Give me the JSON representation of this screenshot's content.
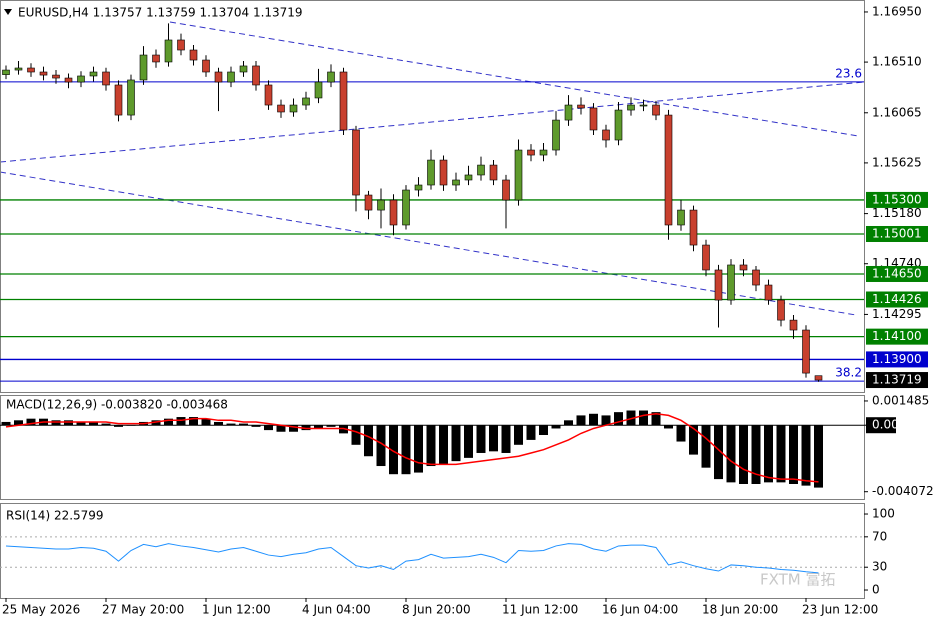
{
  "chart_data": [
    {
      "type": "candlestick",
      "title": "EURUSD,H4 1.13757 1.13759 1.13704 1.13719",
      "categories": [
        "25 May 2026",
        null,
        null,
        null,
        null,
        null,
        null,
        null,
        "27 May 20:00",
        null,
        null,
        null,
        null,
        null,
        null,
        null,
        "1 Jun 12:00",
        null,
        null,
        null,
        null,
        null,
        null,
        null,
        "4 Jun 04:00",
        null,
        null,
        null,
        null,
        null,
        null,
        null,
        "8 Jun 20:00",
        null,
        null,
        null,
        null,
        null,
        null,
        null,
        "11 Jun 12:00",
        null,
        null,
        null,
        null,
        null,
        null,
        null,
        "16 Jun 04:00",
        null,
        null,
        null,
        null,
        null,
        null,
        null,
        "18 Jun 20:00",
        null,
        null,
        null,
        null,
        null,
        null,
        null,
        "23 Jun 12:00",
        null
      ],
      "open": [
        1.164,
        1.1644,
        1.16458,
        1.16423,
        1.16396,
        1.1637,
        1.16335,
        1.16388,
        1.16423,
        1.16309,
        1.16045,
        1.16353,
        1.16572,
        1.16511,
        1.16704,
        1.16616,
        1.16528,
        1.16423,
        1.16335,
        1.16423,
        1.16476,
        1.16309,
        1.16133,
        1.16072,
        1.16133,
        1.16195,
        1.16335,
        1.16423,
        1.15914,
        1.15343,
        1.15211,
        1.15299,
        1.1508,
        1.15387,
        1.15431,
        1.1565,
        1.15431,
        1.15475,
        1.15519,
        1.15606,
        1.15475,
        1.15299,
        1.15738,
        1.15694,
        1.15738,
        1.16001,
        1.16133,
        1.16107,
        1.15914,
        1.15826,
        1.16089,
        1.16133,
        1.16133,
        1.16045,
        1.1508,
        1.15211,
        1.14904,
        1.14685,
        1.14421,
        1.14729,
        1.14685,
        1.14553,
        1.14421,
        1.14245,
        1.14158,
        1.13757
      ],
      "high": [
        1.1648,
        1.1652,
        1.165,
        1.1647,
        1.1644,
        1.1641,
        1.1643,
        1.1647,
        1.1646,
        1.1635,
        1.164,
        1.1665,
        1.1662,
        1.1685,
        1.1676,
        1.1666,
        1.1657,
        1.1646,
        1.1647,
        1.1652,
        1.1652,
        1.1635,
        1.1618,
        1.1619,
        1.1625,
        1.1645,
        1.1649,
        1.1646,
        1.1595,
        1.1538,
        1.154,
        1.1535,
        1.1543,
        1.155,
        1.1574,
        1.1569,
        1.1554,
        1.156,
        1.1568,
        1.1565,
        1.1552,
        1.1583,
        1.1579,
        1.158,
        1.1608,
        1.1622,
        1.162,
        1.1615,
        1.1596,
        1.1616,
        1.162,
        1.1618,
        1.1617,
        1.1609,
        1.153,
        1.1525,
        1.1495,
        1.1473,
        1.1478,
        1.1478,
        1.1472,
        1.146,
        1.1446,
        1.1429,
        1.142,
        1.13759
      ],
      "low": [
        1.1636,
        1.164,
        1.1638,
        1.1635,
        1.1632,
        1.1628,
        1.1629,
        1.1634,
        1.1626,
        1.1599,
        1.16,
        1.1631,
        1.1646,
        1.1647,
        1.1657,
        1.1648,
        1.1638,
        1.1608,
        1.1629,
        1.1638,
        1.1626,
        1.1609,
        1.1602,
        1.1603,
        1.1609,
        1.1615,
        1.1629,
        1.1587,
        1.152,
        1.1513,
        1.1505,
        1.1499,
        1.1504,
        1.1533,
        1.1539,
        1.1538,
        1.1538,
        1.1543,
        1.1547,
        1.1543,
        1.1505,
        1.1525,
        1.1564,
        1.1564,
        1.1569,
        1.1595,
        1.1605,
        1.1587,
        1.1576,
        1.1578,
        1.1604,
        1.1608,
        1.16,
        1.1495,
        1.1503,
        1.1485,
        1.1463,
        1.1418,
        1.1438,
        1.1463,
        1.145,
        1.1438,
        1.1419,
        1.1408,
        1.1374,
        1.13704
      ],
      "close": [
        1.1644,
        1.16458,
        1.16423,
        1.16396,
        1.1637,
        1.16335,
        1.16388,
        1.16423,
        1.16309,
        1.16045,
        1.16353,
        1.16572,
        1.16511,
        1.16704,
        1.16616,
        1.16528,
        1.16423,
        1.16335,
        1.16423,
        1.16476,
        1.16309,
        1.16133,
        1.16072,
        1.16133,
        1.16195,
        1.16335,
        1.16423,
        1.15914,
        1.15343,
        1.15211,
        1.15299,
        1.1508,
        1.15387,
        1.15431,
        1.1565,
        1.15431,
        1.15475,
        1.15519,
        1.15606,
        1.15475,
        1.15299,
        1.15738,
        1.15694,
        1.15738,
        1.16001,
        1.16133,
        1.16107,
        1.15914,
        1.15826,
        1.16089,
        1.16133,
        1.16133,
        1.16045,
        1.1508,
        1.15211,
        1.14904,
        1.14685,
        1.14421,
        1.14729,
        1.14685,
        1.14553,
        1.14421,
        1.14245,
        1.14158,
        1.1378,
        1.13719
      ],
      "up_color": "#5e9a2c",
      "down_color": "#c8402e",
      "ylim": [
        1.13614,
        1.17055
      ],
      "yticks": [
        {
          "value": 1.1695,
          "label": "1.16950"
        },
        {
          "value": 1.1651,
          "label": "1.16510"
        },
        1.16065,
        1.15625,
        {
          "value": 1.1518,
          "label": "1.15180"
        },
        {
          "value": 1.1474,
          "label": "1.14740"
        },
        1.14295
      ],
      "levels": [
        {
          "value": 1.153,
          "label": "1.15300",
          "color": "#008000"
        },
        {
          "value": 1.15001,
          "label": "1.15001",
          "color": "#008000"
        },
        {
          "value": 1.1465,
          "label": "1.14650",
          "color": "#008000"
        },
        {
          "value": 1.14426,
          "label": "1.14426",
          "color": "#008000"
        },
        {
          "value": 1.141,
          "label": "1.14100",
          "color": "#008000"
        },
        {
          "value": 1.139,
          "label": "1.13900",
          "color": "#0000cd"
        }
      ],
      "fib_levels": [
        {
          "value": 1.16336,
          "label": "23.6"
        },
        {
          "value": 1.1371,
          "label": "38.2"
        }
      ],
      "fib_color": "#0000cd",
      "last_price": {
        "value": 1.13719,
        "label": "1.13719"
      }
    },
    {
      "type": "macd",
      "title": "MACD(12,26,9) -0.003820 -0.003468",
      "ylim": [
        -0.00458,
        0.00185
      ],
      "yticks": [
        0.001485,
        {
          "value": 0,
          "label": "0.00"
        },
        -0.004072
      ],
      "series": [
        {
          "type": "bar",
          "color": "#000000",
          "values": [
            0.0002,
            0.0003,
            0.0004,
            0.0004,
            0.0003,
            0.0003,
            0.0002,
            0.0002,
            0.0001,
            -0.0001,
            0,
            0.0002,
            0.0003,
            0.0004,
            0.0005,
            0.0005,
            0.0004,
            0.0002,
            0.0001,
            0.0001,
            -0.0001,
            -0.0003,
            -0.0004,
            -0.0004,
            -0.0003,
            -0.0002,
            -0.0001,
            -0.0005,
            -0.0012,
            -0.0019,
            -0.0025,
            -0.003,
            -0.003,
            -0.0029,
            -0.0025,
            -0.0024,
            -0.0022,
            -0.002,
            -0.0017,
            -0.0016,
            -0.0017,
            -0.0012,
            -0.0009,
            -0.0006,
            -0.0002,
            0.0003,
            0.0006,
            0.0007,
            0.0006,
            0.0008,
            0.0009,
            0.0009,
            0.0008,
            -0.0002,
            -0.001,
            -0.0018,
            -0.0026,
            -0.0033,
            -0.0035,
            -0.0036,
            -0.0036,
            -0.0035,
            -0.0035,
            -0.0036,
            -0.0037,
            -0.00382
          ]
        },
        {
          "type": "line",
          "color": "#ff0000",
          "values": [
            -0.0001,
            0,
            0.0001,
            0.0002,
            0.0002,
            0.0002,
            0.0002,
            0.0002,
            0.0002,
            0.0001,
            0.0001,
            0.0001,
            0.0002,
            0.0003,
            0.0003,
            0.0004,
            0.0004,
            0.0003,
            0.0003,
            0.0002,
            0.0002,
            0.0001,
            0,
            -0.0001,
            -0.0002,
            -0.0002,
            -0.0002,
            -0.0002,
            -0.0004,
            -0.0007,
            -0.0011,
            -0.0016,
            -0.002,
            -0.0023,
            -0.0024,
            -0.0024,
            -0.0024,
            -0.0023,
            -0.0022,
            -0.0021,
            -0.002,
            -0.0019,
            -0.0017,
            -0.0015,
            -0.0012,
            -0.0009,
            -0.0005,
            -0.0002,
            0,
            0.0002,
            0.0004,
            0.0006,
            0.0007,
            0.0006,
            0.0003,
            -0.0002,
            -0.0008,
            -0.0015,
            -0.0022,
            -0.0027,
            -0.003,
            -0.0032,
            -0.0033,
            -0.0033,
            -0.0034,
            -0.003468
          ]
        }
      ]
    },
    {
      "type": "rsi",
      "title": "RSI(14) 22.5799",
      "ylim": [
        -10.5,
        114.5
      ],
      "yticks": [
        100,
        70,
        30,
        0
      ],
      "levels": [
        70,
        30
      ],
      "color": "#1e90ff",
      "values": [
        58,
        57,
        56,
        55,
        54,
        54,
        56,
        55,
        51,
        38,
        52,
        60,
        57,
        61,
        58,
        56,
        53,
        50,
        54,
        56,
        51,
        46,
        44,
        47,
        49,
        54,
        56,
        44,
        32,
        29,
        32,
        27,
        38,
        40,
        47,
        42,
        43,
        44,
        47,
        43,
        36,
        52,
        51,
        52,
        58,
        61,
        60,
        54,
        51,
        58,
        59,
        59,
        56,
        33,
        37,
        32,
        28,
        25,
        33,
        32,
        30,
        29,
        27,
        26,
        24,
        22.5799
      ]
    }
  ],
  "watermark": "FXTM 富拓"
}
